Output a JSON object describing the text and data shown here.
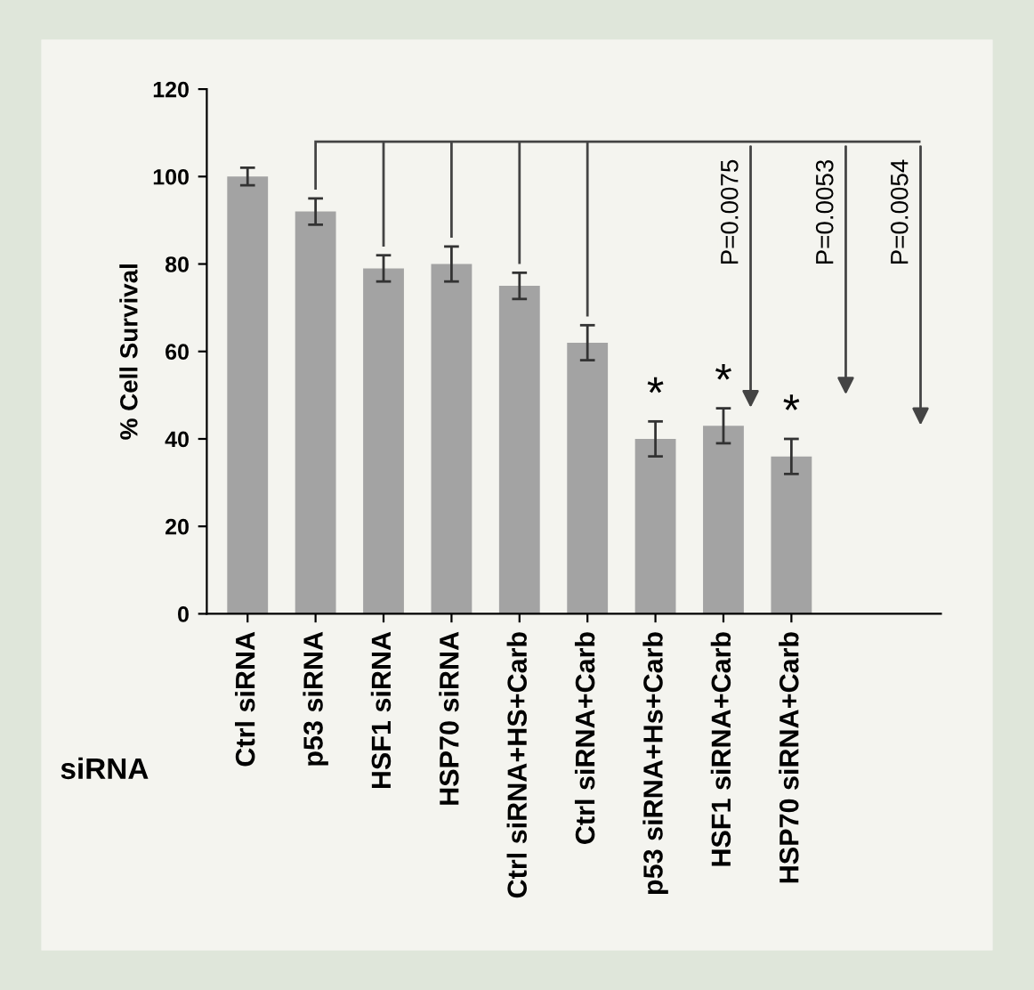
{
  "chart_data": {
    "type": "bar",
    "ylabel": "% Cell Survival",
    "xlabel": "siRNA",
    "categories": [
      "Ctrl siRNA",
      "p53 siRNA",
      "HSF1 siRNA",
      "HSP70 siRNA",
      "Ctrl siRNA+HS+Carb",
      "Ctrl siRNA+Carb",
      "p53 siRNA+Hs+Carb",
      "HSF1 siRNA+Carb",
      "HSP70 siRNA+Carb"
    ],
    "values": [
      100,
      92,
      79,
      80,
      75,
      62,
      40,
      43,
      36
    ],
    "errors": [
      2,
      3,
      3,
      4,
      3,
      4,
      4,
      4,
      4
    ],
    "color": "#a3a3a3",
    "ylim": [
      0,
      120
    ],
    "yticks": [
      0,
      20,
      40,
      60,
      80,
      100,
      120
    ],
    "grid": false,
    "annotations": [
      "*",
      "*",
      "*",
      "P=0.0075",
      "P=0.0053",
      "P=0.0054"
    ]
  }
}
